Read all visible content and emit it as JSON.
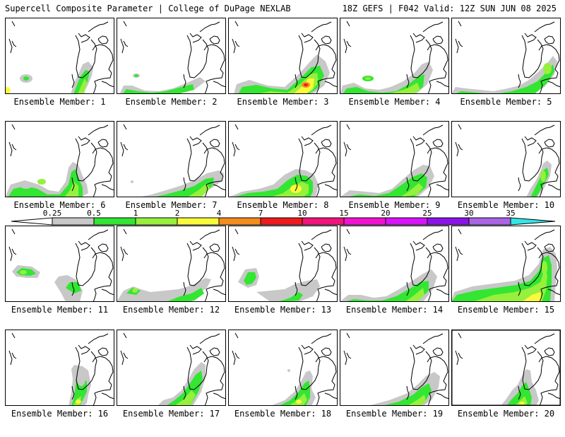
{
  "header": {
    "left": "Supercell Composite Parameter | College of DuPage NEXLAB",
    "right": "18Z GEFS | F042 Valid: 12Z SUN JUN 08 2025"
  },
  "colors": {
    "level_0_25": "#c8c8c8",
    "level_0_5": "#32e632",
    "level_1": "#96f03c",
    "level_2": "#fafa3c",
    "level_4": "#f58c1e",
    "level_7": "#ee1c1c",
    "level_10": "#f0147d",
    "level_15": "#f014d2",
    "level_20": "#d814f8",
    "level_25": "#8c14e6",
    "level_30": "#aa64e6",
    "level_35": "#32e6e6"
  },
  "colorbar": {
    "labels": [
      "0.25",
      "0.5",
      "1",
      "2",
      "4",
      "7",
      "10",
      "15",
      "20",
      "25",
      "30",
      "35"
    ]
  },
  "panels": [
    {
      "label": "Ensemble Member: 1"
    },
    {
      "label": "Ensemble Member: 2"
    },
    {
      "label": "Ensemble Member: 3"
    },
    {
      "label": "Ensemble Member: 4"
    },
    {
      "label": "Ensemble Member: 5"
    },
    {
      "label": "Ensemble Member: 6"
    },
    {
      "label": "Ensemble Member: 7"
    },
    {
      "label": "Ensemble Member: 8"
    },
    {
      "label": "Ensemble Member: 9"
    },
    {
      "label": "Ensemble Member: 10"
    },
    {
      "label": "Ensemble Member: 11"
    },
    {
      "label": "Ensemble Member: 12"
    },
    {
      "label": "Ensemble Member: 13"
    },
    {
      "label": "Ensemble Member: 14"
    },
    {
      "label": "Ensemble Member: 15"
    },
    {
      "label": "Ensemble Member: 16"
    },
    {
      "label": "Ensemble Member: 17"
    },
    {
      "label": "Ensemble Member: 18"
    },
    {
      "label": "Ensemble Member: 19"
    },
    {
      "label": "Ensemble Member: 20"
    }
  ]
}
